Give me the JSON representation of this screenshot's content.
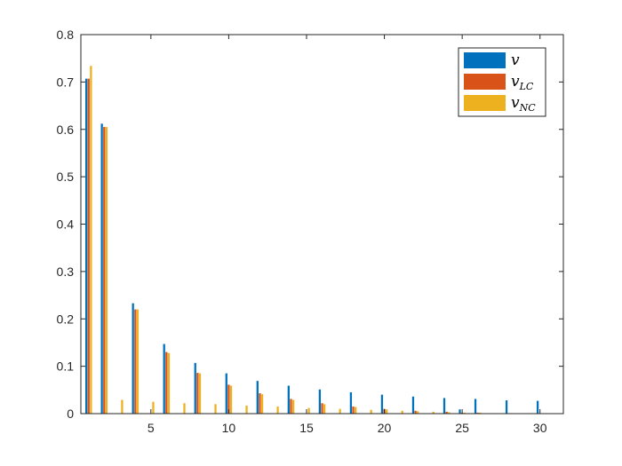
{
  "chart_data": {
    "type": "bar",
    "title": "",
    "xlabel": "",
    "ylabel": "",
    "xlim": [
      0.5,
      31.5
    ],
    "ylim": [
      0,
      0.8
    ],
    "x_ticks": [
      5,
      10,
      15,
      20,
      25,
      30
    ],
    "y_ticks": [
      0,
      0.1,
      0.2,
      0.3,
      0.4,
      0.5,
      0.6,
      0.7,
      0.8
    ],
    "x_tick_labels": [
      "5",
      "10",
      "15",
      "20",
      "25",
      "30"
    ],
    "y_tick_labels": [
      "0",
      "0.1",
      "0.2",
      "0.3",
      "0.4",
      "0.5",
      "0.6",
      "0.7",
      "0.8"
    ],
    "grid": false,
    "legend_position": "top-right",
    "x": [
      1,
      2,
      3,
      4,
      5,
      6,
      7,
      8,
      9,
      10,
      11,
      12,
      13,
      14,
      15,
      16,
      17,
      18,
      19,
      20,
      21,
      22,
      23,
      24,
      25,
      26,
      27,
      28,
      29,
      30,
      31
    ],
    "series": [
      {
        "name": "v",
        "name_main": "v",
        "name_sub": "",
        "color": "#0072BD",
        "values": [
          0.707,
          0.612,
          0,
          0.233,
          0,
          0.147,
          0,
          0.107,
          0,
          0.085,
          0,
          0.069,
          0,
          0.059,
          0,
          0.051,
          0,
          0.045,
          0,
          0.04,
          0,
          0.036,
          0,
          0.033,
          0.009,
          0.031,
          0,
          0.028,
          0,
          0.027,
          0
        ]
      },
      {
        "name": "v_LC",
        "name_main": "v",
        "name_sub": "LC",
        "color": "#D95319",
        "values": [
          0.707,
          0.605,
          0,
          0.22,
          0,
          0.13,
          0,
          0.086,
          0,
          0.061,
          0,
          0.043,
          0,
          0.031,
          0,
          0.022,
          0,
          0.015,
          0,
          0.01,
          0,
          0.006,
          0,
          0.004,
          0.002,
          0.002,
          0,
          0.001,
          0,
          0.001,
          0
        ]
      },
      {
        "name": "v_NC",
        "name_main": "v",
        "name_sub": "NC",
        "color": "#EDB120",
        "values": [
          0.734,
          0.605,
          0.029,
          0.22,
          0.025,
          0.128,
          0.022,
          0.085,
          0.02,
          0.059,
          0.017,
          0.041,
          0.015,
          0.029,
          0.012,
          0.02,
          0.01,
          0.014,
          0.008,
          0.009,
          0.006,
          0.005,
          0.004,
          0.003,
          0.002,
          0.002,
          0.001,
          0.001,
          0.0005,
          0.0005,
          0.0003
        ]
      }
    ]
  }
}
